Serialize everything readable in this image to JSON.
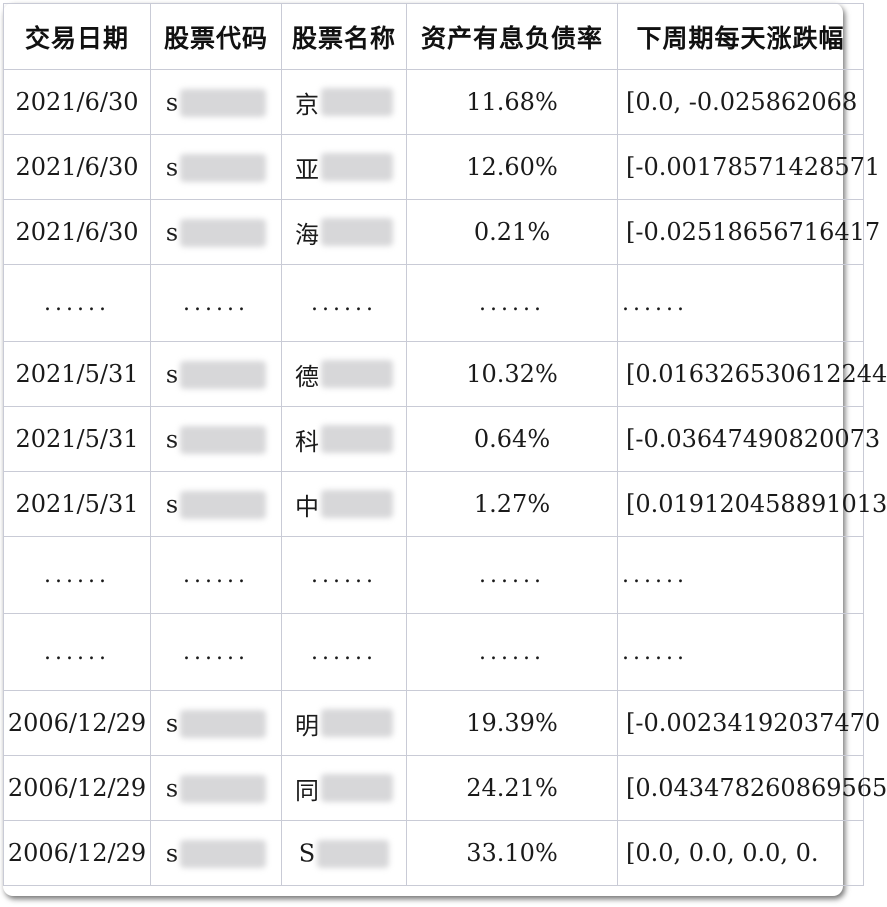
{
  "table": {
    "headers": [
      "交易日期",
      "股票代码",
      "股票名称",
      "资产有息负债率",
      "下周期每天涨跌幅"
    ],
    "rows": [
      {
        "type": "data",
        "date": "2021/6/30",
        "code_prefix": "s",
        "name_prefix": "京",
        "ratio": "11.68%",
        "changes": "[0.0, -0.025862068"
      },
      {
        "type": "data",
        "date": "2021/6/30",
        "code_prefix": "s",
        "name_prefix": "亚",
        "ratio": "12.60%",
        "changes": "[-0.0017857142857​1"
      },
      {
        "type": "data",
        "date": "2021/6/30",
        "code_prefix": "s",
        "name_prefix": "海",
        "ratio": "0.21%",
        "changes": "[-0.025186567164​17"
      },
      {
        "type": "ellipsis",
        "cells": [
          "......",
          "......",
          "......",
          "......",
          "......"
        ]
      },
      {
        "type": "data",
        "date": "2021/5/31",
        "code_prefix": "s",
        "name_prefix": "德",
        "ratio": "10.32%",
        "changes": "[0.016326530612244"
      },
      {
        "type": "data",
        "date": "2021/5/31",
        "code_prefix": "s",
        "name_prefix": "科",
        "ratio": "0.64%",
        "changes": "[-0.036474908200​73"
      },
      {
        "type": "data",
        "date": "2021/5/31",
        "code_prefix": "s",
        "name_prefix": "中",
        "ratio": "1.27%",
        "changes": "[0.019120458891013"
      },
      {
        "type": "ellipsis",
        "cells": [
          "......",
          "......",
          "......",
          "......",
          "......"
        ]
      },
      {
        "type": "ellipsis",
        "cells": [
          "......",
          "......",
          "......",
          "......",
          "......"
        ]
      },
      {
        "type": "data",
        "date": "2006/12/29",
        "code_prefix": "s",
        "name_prefix": "明",
        "ratio": "19.39%",
        "changes": "[-0.002341920374​70"
      },
      {
        "type": "data",
        "date": "2006/12/29",
        "code_prefix": "s",
        "name_prefix": "同",
        "ratio": "24.21%",
        "changes": "[0.043478260869565"
      },
      {
        "type": "data",
        "date": "2006/12/29",
        "code_prefix": "s",
        "name_prefix": "S",
        "ratio": "33.10%",
        "changes": "[0.0, 0.0, 0.0, 0."
      }
    ]
  }
}
